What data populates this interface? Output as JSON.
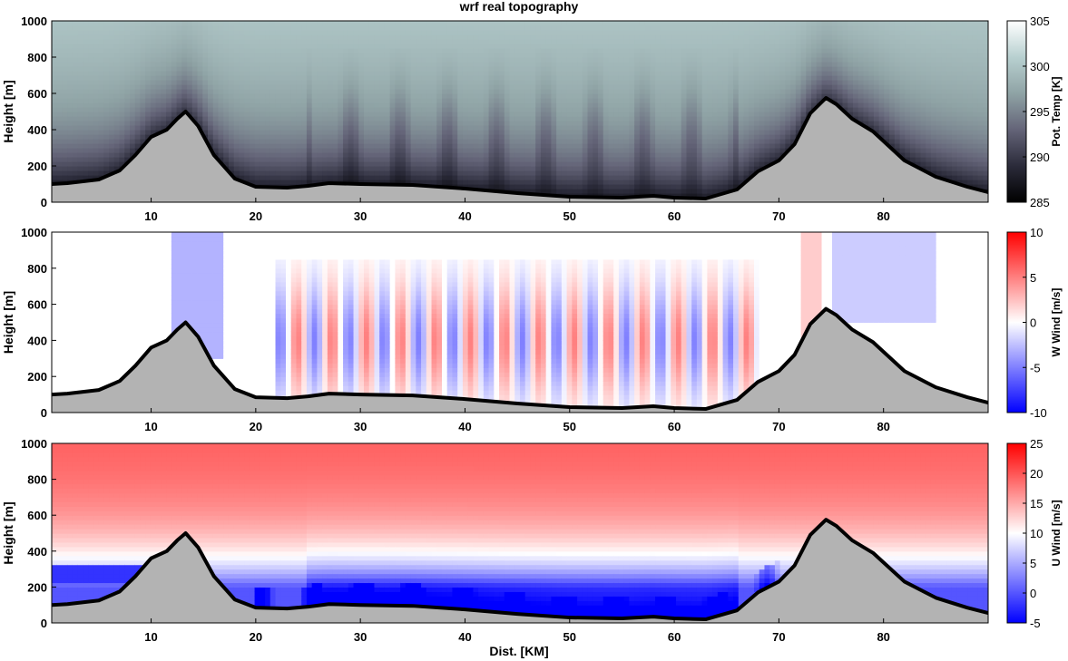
{
  "title": "wrf real topography",
  "xlabel": "Dist. [KM]",
  "chart_data": [
    {
      "type": "heatmap",
      "name": "potential temperature",
      "ylabel": "Height [m]",
      "colorbar_label": "Pot. Temp [K]",
      "colorbar_ticks": [
        285,
        290,
        295,
        300,
        305
      ],
      "colorbar_range": [
        285,
        305
      ],
      "colormap": [
        "#000000",
        "#2b2b3a",
        "#646478",
        "#8fa3a5",
        "#b8d0d0",
        "#ffffff"
      ],
      "xlim": [
        0.5,
        90
      ],
      "ylim": [
        0,
        1000
      ],
      "xticks": [
        10,
        20,
        30,
        40,
        50,
        60,
        70,
        80
      ],
      "yticks": [
        0,
        200,
        400,
        600,
        800,
        1000
      ]
    },
    {
      "type": "heatmap",
      "name": "vertical wind",
      "ylabel": "Height [m]",
      "colorbar_label": "W Wind [m/s]",
      "colorbar_ticks": [
        -10,
        -5,
        0,
        5,
        10
      ],
      "colorbar_range": [
        -10,
        10
      ],
      "colormap": [
        "#0000ff",
        "#ffffff",
        "#ff0000"
      ],
      "xlim": [
        0.5,
        90
      ],
      "ylim": [
        0,
        1000
      ],
      "xticks": [
        10,
        20,
        30,
        40,
        50,
        60,
        70,
        80
      ],
      "yticks": [
        0,
        200,
        400,
        600,
        800,
        1000
      ]
    },
    {
      "type": "heatmap",
      "name": "horizontal wind",
      "ylabel": "Height [m]",
      "colorbar_label": "U Wind [m/s]",
      "colorbar_ticks": [
        -5,
        0,
        5,
        10,
        15,
        20,
        25
      ],
      "colorbar_range": [
        -5,
        25
      ],
      "colormap": [
        "#0000ff",
        "#ffffff",
        "#ff0000"
      ],
      "xlim": [
        0.5,
        90
      ],
      "ylim": [
        0,
        1000
      ],
      "xticks": [
        10,
        20,
        30,
        40,
        50,
        60,
        70,
        80
      ],
      "yticks": [
        0,
        200,
        400,
        600,
        800,
        1000
      ]
    }
  ],
  "terrain": {
    "color": "#b3b3b3",
    "x": [
      0.5,
      2,
      5,
      7,
      8.5,
      10,
      11.5,
      12.5,
      13.3,
      14.5,
      16,
      18,
      20,
      23,
      25,
      27,
      30,
      35,
      40,
      45,
      50,
      55,
      58,
      60,
      63,
      66,
      68,
      70,
      71.5,
      73,
      74.5,
      75.5,
      77,
      79,
      82,
      85,
      88,
      90
    ],
    "height": [
      100,
      105,
      125,
      175,
      260,
      360,
      400,
      460,
      500,
      420,
      260,
      130,
      85,
      80,
      90,
      105,
      100,
      95,
      75,
      50,
      30,
      25,
      35,
      25,
      20,
      70,
      170,
      230,
      320,
      490,
      575,
      540,
      460,
      390,
      230,
      140,
      85,
      55
    ]
  }
}
